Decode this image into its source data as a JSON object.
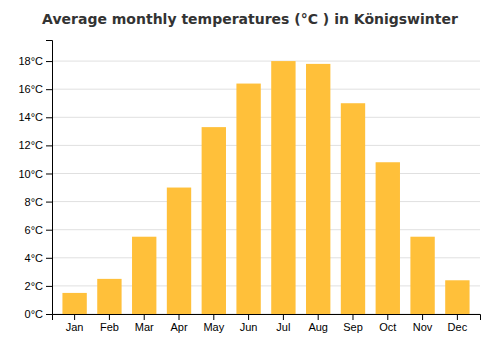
{
  "chart_data": {
    "type": "bar",
    "title": "Average monthly temperatures (°C ) in Königswinter",
    "categories": [
      "Jan",
      "Feb",
      "Mar",
      "Apr",
      "May",
      "Jun",
      "Jul",
      "Aug",
      "Sep",
      "Oct",
      "Nov",
      "Dec"
    ],
    "values": [
      1.5,
      2.5,
      5.5,
      9.0,
      13.3,
      16.4,
      18.0,
      17.8,
      15.0,
      10.8,
      5.5,
      2.4
    ],
    "color": "#FFC03A",
    "ylim": [
      0,
      19.5
    ],
    "yticks": [
      {
        "value": 0,
        "label": "0°C"
      },
      {
        "value": 2,
        "label": "2°C"
      },
      {
        "value": 4,
        "label": "4°C"
      },
      {
        "value": 6,
        "label": "6°C"
      },
      {
        "value": 8,
        "label": "8°C"
      },
      {
        "value": 10,
        "label": "10°C"
      },
      {
        "value": 12,
        "label": "12°C"
      },
      {
        "value": 14,
        "label": "14°C"
      },
      {
        "value": 16,
        "label": "16°C"
      },
      {
        "value": 18,
        "label": "18°C"
      }
    ],
    "grid": true
  }
}
